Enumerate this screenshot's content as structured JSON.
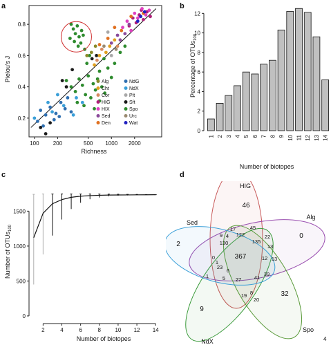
{
  "panel_labels": {
    "a": "a",
    "b": "b",
    "c": "c",
    "d": "d"
  },
  "page_number": "4",
  "chart_data": [
    {
      "panel": "a",
      "type": "scatter",
      "xlabel": "Richness",
      "ylabel": "Pielou's J",
      "xscale": "log",
      "xlim": [
        85,
        4500
      ],
      "ylim": [
        0.08,
        0.92
      ],
      "x_ticks": [
        100,
        200,
        500,
        1000,
        2000
      ],
      "x_tick_labels": [
        "100",
        "200",
        "500",
        "1000",
        "2000"
      ],
      "y_ticks": [
        0.2,
        0.4,
        0.6,
        0.8
      ],
      "y_tick_labels": [
        "0.2",
        "0.4",
        "0.6",
        "0.8"
      ],
      "grid": false,
      "legend_placement": "bottom-right",
      "legend": [
        {
          "name": "Alg",
          "color": "#8a8a2a"
        },
        {
          "name": "NdG",
          "color": "#2f6fb0"
        },
        {
          "name": "Cht",
          "color": "#e0a020"
        },
        {
          "name": "NdX",
          "color": "#3a9fd8"
        },
        {
          "name": "Cor",
          "color": "#d88a60"
        },
        {
          "name": "Plt",
          "color": "#a8a8a8"
        },
        {
          "name": "HIG",
          "color": "#b0207a"
        },
        {
          "name": "Sft",
          "color": "#1a1a1a"
        },
        {
          "name": "HIX",
          "color": "#e040c0"
        },
        {
          "name": "Spo",
          "color": "#2e8b2e"
        },
        {
          "name": "Sed",
          "color": "#8a4a9a"
        },
        {
          "name": "Urc",
          "color": "#9a8a70"
        },
        {
          "name": "Den",
          "color": "#e07020"
        },
        {
          "name": "Wat",
          "color": "#2020c0"
        }
      ],
      "trend_line": [
        [
          90,
          0.14
        ],
        [
          3800,
          0.9
        ]
      ],
      "highlight_circle": {
        "x": 350,
        "y": 0.72
      },
      "points": [
        {
          "x": 300,
          "y": 0.8,
          "group": "Spo"
        },
        {
          "x": 320,
          "y": 0.77,
          "group": "Spo"
        },
        {
          "x": 340,
          "y": 0.74,
          "group": "Spo"
        },
        {
          "x": 360,
          "y": 0.79,
          "group": "Spo"
        },
        {
          "x": 380,
          "y": 0.72,
          "group": "Spo"
        },
        {
          "x": 410,
          "y": 0.76,
          "group": "Spo"
        },
        {
          "x": 290,
          "y": 0.71,
          "group": "Spo"
        },
        {
          "x": 330,
          "y": 0.69,
          "group": "Spo"
        },
        {
          "x": 400,
          "y": 0.68,
          "group": "Spo"
        },
        {
          "x": 430,
          "y": 0.73,
          "group": "Spo"
        },
        {
          "x": 370,
          "y": 0.66,
          "group": "Spo"
        },
        {
          "x": 450,
          "y": 0.64,
          "group": "Spo"
        },
        {
          "x": 260,
          "y": 0.44,
          "group": "Spo"
        },
        {
          "x": 300,
          "y": 0.4,
          "group": "Spo"
        },
        {
          "x": 340,
          "y": 0.37,
          "group": "Spo"
        },
        {
          "x": 380,
          "y": 0.45,
          "group": "Spo"
        },
        {
          "x": 420,
          "y": 0.41,
          "group": "Spo"
        },
        {
          "x": 460,
          "y": 0.35,
          "group": "Spo"
        },
        {
          "x": 500,
          "y": 0.47,
          "group": "Spo"
        },
        {
          "x": 540,
          "y": 0.33,
          "group": "Spo"
        },
        {
          "x": 580,
          "y": 0.42,
          "group": "Spo"
        },
        {
          "x": 620,
          "y": 0.38,
          "group": "Spo"
        },
        {
          "x": 660,
          "y": 0.45,
          "group": "Spo"
        },
        {
          "x": 700,
          "y": 0.31,
          "group": "Spo"
        },
        {
          "x": 750,
          "y": 0.4,
          "group": "Spo"
        },
        {
          "x": 820,
          "y": 0.36,
          "group": "Spo"
        },
        {
          "x": 440,
          "y": 0.28,
          "group": "Spo"
        },
        {
          "x": 360,
          "y": 0.3,
          "group": "Spo"
        },
        {
          "x": 600,
          "y": 0.26,
          "group": "Spo"
        },
        {
          "x": 700,
          "y": 0.5,
          "group": "Spo"
        },
        {
          "x": 900,
          "y": 0.52,
          "group": "Spo"
        },
        {
          "x": 1000,
          "y": 0.46,
          "group": "Spo"
        },
        {
          "x": 1100,
          "y": 0.55,
          "group": "Spo"
        },
        {
          "x": 800,
          "y": 0.58,
          "group": "Spo"
        },
        {
          "x": 480,
          "y": 0.55,
          "group": "Spo"
        },
        {
          "x": 520,
          "y": 0.6,
          "group": "Spo"
        },
        {
          "x": 1300,
          "y": 0.62,
          "group": "Spo"
        },
        {
          "x": 1500,
          "y": 0.66,
          "group": "Spo"
        },
        {
          "x": 120,
          "y": 0.25,
          "group": "NdG"
        },
        {
          "x": 140,
          "y": 0.22,
          "group": "NdG"
        },
        {
          "x": 110,
          "y": 0.18,
          "group": "NdG"
        },
        {
          "x": 160,
          "y": 0.27,
          "group": "NdG"
        },
        {
          "x": 190,
          "y": 0.23,
          "group": "NdG"
        },
        {
          "x": 220,
          "y": 0.3,
          "group": "NdG"
        },
        {
          "x": 250,
          "y": 0.26,
          "group": "NdG"
        },
        {
          "x": 130,
          "y": 0.15,
          "group": "NdG"
        },
        {
          "x": 180,
          "y": 0.19,
          "group": "NdG"
        },
        {
          "x": 210,
          "y": 0.21,
          "group": "NdG"
        },
        {
          "x": 270,
          "y": 0.33,
          "group": "NdG"
        },
        {
          "x": 300,
          "y": 0.24,
          "group": "NdG"
        },
        {
          "x": 100,
          "y": 0.2,
          "group": "NdX"
        },
        {
          "x": 150,
          "y": 0.3,
          "group": "NdX"
        },
        {
          "x": 200,
          "y": 0.35,
          "group": "NdX"
        },
        {
          "x": 240,
          "y": 0.28,
          "group": "NdX"
        },
        {
          "x": 350,
          "y": 0.33,
          "group": "NdX"
        },
        {
          "x": 320,
          "y": 0.22,
          "group": "NdX"
        },
        {
          "x": 420,
          "y": 0.3,
          "group": "NdX"
        },
        {
          "x": 170,
          "y": 0.24,
          "group": "NdX"
        },
        {
          "x": 140,
          "y": 0.1,
          "group": "Sft"
        },
        {
          "x": 120,
          "y": 0.14,
          "group": "Sft"
        },
        {
          "x": 230,
          "y": 0.44,
          "group": "Sft"
        },
        {
          "x": 260,
          "y": 0.4,
          "group": "Sft"
        },
        {
          "x": 560,
          "y": 0.58,
          "group": "Sft"
        },
        {
          "x": 160,
          "y": 0.17,
          "group": "Sft"
        },
        {
          "x": 310,
          "y": 0.51,
          "group": "Sft"
        },
        {
          "x": 640,
          "y": 0.6,
          "group": "Sft"
        },
        {
          "x": 1900,
          "y": 0.84,
          "group": "HIG"
        },
        {
          "x": 2100,
          "y": 0.81,
          "group": "HIG"
        },
        {
          "x": 2300,
          "y": 0.86,
          "group": "HIG"
        },
        {
          "x": 2600,
          "y": 0.83,
          "group": "HIG"
        },
        {
          "x": 2900,
          "y": 0.88,
          "group": "HIG"
        },
        {
          "x": 3200,
          "y": 0.85,
          "group": "HIG"
        },
        {
          "x": 1700,
          "y": 0.79,
          "group": "HIG"
        },
        {
          "x": 2450,
          "y": 0.89,
          "group": "HIG"
        },
        {
          "x": 2000,
          "y": 0.87,
          "group": "HIX"
        },
        {
          "x": 2200,
          "y": 0.84,
          "group": "HIX"
        },
        {
          "x": 2500,
          "y": 0.9,
          "group": "HIX"
        },
        {
          "x": 2800,
          "y": 0.86,
          "group": "HIX"
        },
        {
          "x": 3100,
          "y": 0.89,
          "group": "HIX"
        },
        {
          "x": 1600,
          "y": 0.82,
          "group": "HIX"
        },
        {
          "x": 1400,
          "y": 0.78,
          "group": "HIX"
        },
        {
          "x": 1800,
          "y": 0.76,
          "group": "HIX"
        },
        {
          "x": 1200,
          "y": 0.73,
          "group": "Sed"
        },
        {
          "x": 1500,
          "y": 0.74,
          "group": "Sed"
        },
        {
          "x": 1300,
          "y": 0.7,
          "group": "Sed"
        },
        {
          "x": 1700,
          "y": 0.8,
          "group": "Sed"
        },
        {
          "x": 1000,
          "y": 0.68,
          "group": "Sed"
        },
        {
          "x": 1100,
          "y": 0.78,
          "group": "Den"
        },
        {
          "x": 1350,
          "y": 0.76,
          "group": "Den"
        },
        {
          "x": 900,
          "y": 0.71,
          "group": "Den"
        },
        {
          "x": 1800,
          "y": 0.85,
          "group": "Den"
        },
        {
          "x": 2600,
          "y": 0.87,
          "group": "Den"
        },
        {
          "x": 700,
          "y": 0.67,
          "group": "Den"
        },
        {
          "x": 850,
          "y": 0.62,
          "group": "Cht"
        },
        {
          "x": 950,
          "y": 0.66,
          "group": "Cht"
        },
        {
          "x": 700,
          "y": 0.6,
          "group": "Cht"
        },
        {
          "x": 1100,
          "y": 0.7,
          "group": "Cht"
        },
        {
          "x": 600,
          "y": 0.54,
          "group": "Cht"
        },
        {
          "x": 750,
          "y": 0.64,
          "group": "Cor"
        },
        {
          "x": 650,
          "y": 0.57,
          "group": "Cor"
        },
        {
          "x": 1200,
          "y": 0.66,
          "group": "Cor"
        },
        {
          "x": 550,
          "y": 0.62,
          "group": "Alg"
        },
        {
          "x": 620,
          "y": 0.66,
          "group": "Alg"
        },
        {
          "x": 480,
          "y": 0.6,
          "group": "Alg"
        },
        {
          "x": 900,
          "y": 0.75,
          "group": "Plt"
        },
        {
          "x": 1000,
          "y": 0.6,
          "group": "Plt"
        },
        {
          "x": 800,
          "y": 0.66,
          "group": "Urc"
        },
        {
          "x": 1150,
          "y": 0.64,
          "group": "Urc"
        },
        {
          "x": 2400,
          "y": 0.85,
          "group": "Wat"
        },
        {
          "x": 2700,
          "y": 0.88,
          "group": "Wat"
        },
        {
          "x": 2200,
          "y": 0.82,
          "group": "Wat"
        }
      ]
    },
    {
      "panel": "b",
      "type": "bar",
      "xlabel": "Number of biotopes",
      "ylabel": "Percentage of OTUs",
      "ylabel_subscript": "100",
      "categories": [
        "1",
        "2",
        "3",
        "4",
        "5",
        "6",
        "7",
        "8",
        "9",
        "10",
        "11",
        "12",
        "13",
        "14"
      ],
      "values": [
        1.2,
        2.8,
        3.6,
        4.6,
        6.0,
        5.8,
        6.8,
        7.2,
        10.3,
        12.2,
        12.5,
        12.1,
        9.6,
        5.2
      ],
      "ylim": [
        0,
        12.8
      ],
      "y_ticks": [
        0,
        2,
        4,
        6,
        8,
        10,
        12
      ],
      "y_tick_labels": [
        "0",
        "2",
        "4",
        "6",
        "8",
        "10",
        "12"
      ],
      "bar_color": "#c0c0c0",
      "grid": false
    },
    {
      "panel": "c",
      "type": "line",
      "xlabel": "Number of biotopes",
      "ylabel": "Number of OTUs",
      "ylabel_subscript": "100",
      "x": [
        1,
        2,
        3,
        4,
        5,
        6,
        7,
        8,
        9,
        10,
        11,
        12,
        13,
        14
      ],
      "values": [
        1120,
        1470,
        1605,
        1665,
        1698,
        1714,
        1722,
        1727,
        1730,
        1731,
        1732,
        1733,
        1734,
        1735
      ],
      "error_low": [
        450,
        880,
        1150,
        1380,
        1530,
        1620,
        1670,
        1695,
        1712,
        1720,
        1725,
        1729,
        1732,
        1735
      ],
      "error_high": [
        1740,
        1745,
        1745,
        1745,
        1745,
        1745,
        1745,
        1744,
        1743,
        1742,
        1740,
        1739,
        1737,
        1735
      ],
      "xlim": [
        0.5,
        14.5
      ],
      "ylim": [
        -50,
        1850
      ],
      "x_ticks": [
        2,
        4,
        6,
        8,
        10,
        12,
        14
      ],
      "x_tick_labels": [
        "2",
        "4",
        "6",
        "8",
        "10",
        "12",
        "14"
      ],
      "y_ticks": [
        0,
        500,
        1000,
        1500
      ],
      "y_tick_labels": [
        "0",
        "500",
        "1000",
        "1500"
      ],
      "grid": false
    }
  ],
  "venn": {
    "sets": [
      {
        "name": "HIG",
        "color": "#c85a5a"
      },
      {
        "name": "Alg",
        "color": "#9a4fb0"
      },
      {
        "name": "Spo",
        "color": "#5a9a3a"
      },
      {
        "name": "NdX",
        "color": "#3a9a3a"
      },
      {
        "name": "Sed",
        "color": "#3a9fd8"
      }
    ],
    "unique": {
      "HIG": "46",
      "Alg": "0",
      "Spo": "32",
      "NdX": "9",
      "Sed": "2"
    },
    "intersections": [
      "17",
      "45",
      "122",
      "9",
      "4",
      "130",
      "135",
      "22",
      "13",
      "0",
      "12",
      "1",
      "23",
      "367",
      "6",
      "13",
      "1",
      "5",
      "27",
      "41",
      "39",
      "19",
      "8",
      "20"
    ]
  }
}
